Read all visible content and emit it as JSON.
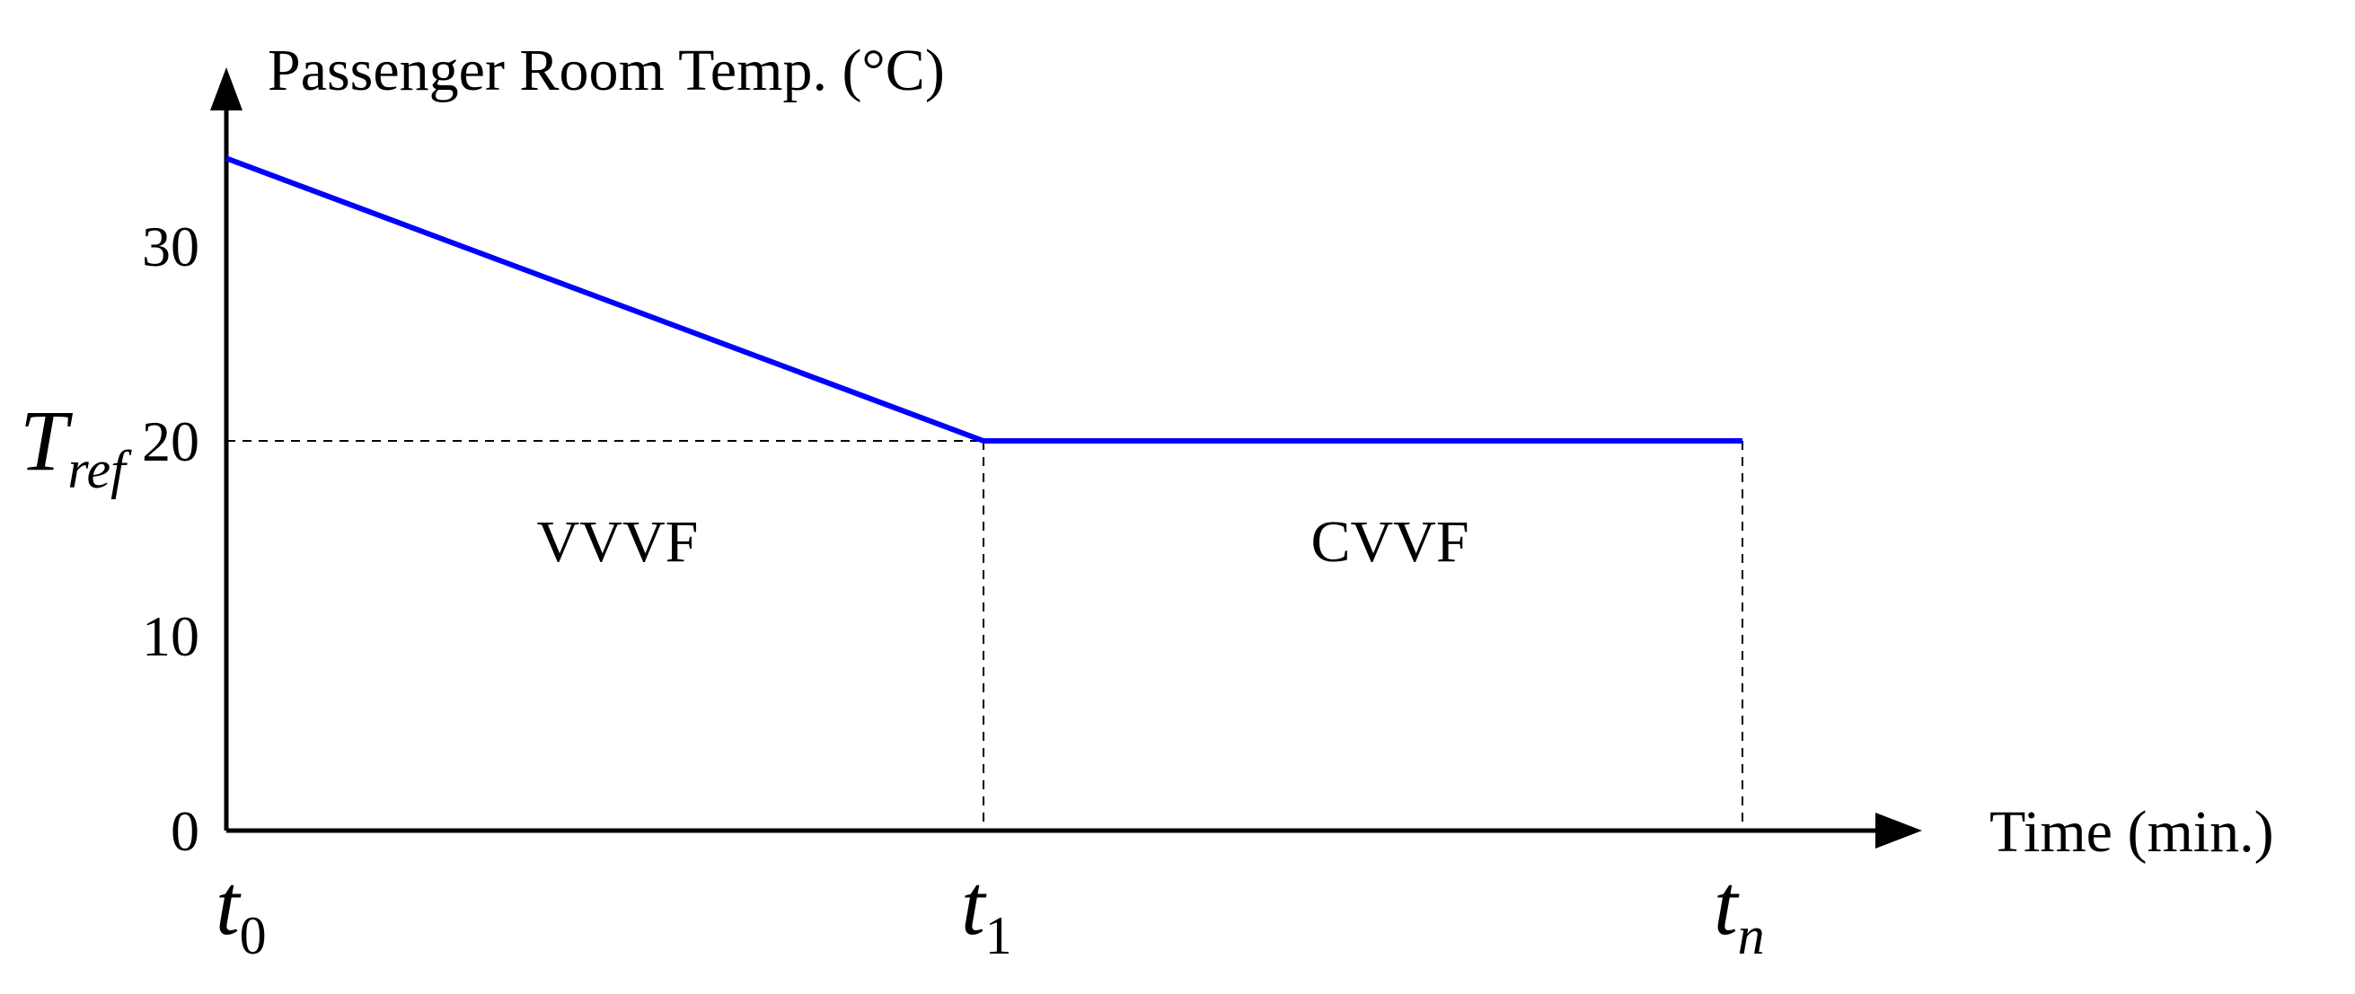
{
  "chart_data": {
    "type": "line",
    "ylabel": "Passenger Room Temp. (°C)",
    "xlabel": "Time (min.)",
    "y_ticks": [
      "0",
      "10",
      "20",
      "30"
    ],
    "ylim": [
      0,
      30
    ],
    "x_ticks": [
      {
        "base": "t",
        "sub": "0"
      },
      {
        "base": "t",
        "sub": "1"
      },
      {
        "base": "t",
        "sub": "n"
      }
    ],
    "reference": {
      "base": "T",
      "sub": "ref",
      "value": 20
    },
    "series": [
      {
        "x": [
          "t0",
          "t1",
          "tn"
        ],
        "values": [
          34.5,
          20,
          20
        ],
        "color": "#0000ff"
      }
    ],
    "regions": [
      {
        "label": "VVVF",
        "from": "t0",
        "to": "t1"
      },
      {
        "label": "CVVF",
        "from": "t1",
        "to": "tn"
      }
    ],
    "grid": false
  }
}
